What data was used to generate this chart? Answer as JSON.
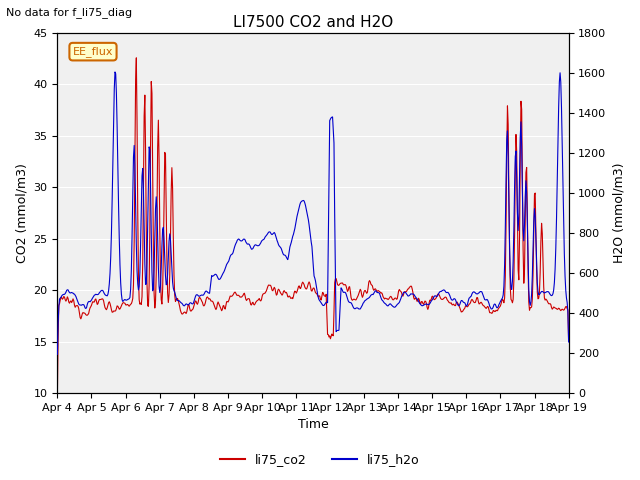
{
  "title": "LI7500 CO2 and H2O",
  "subtitle": "No data for f_li75_diag",
  "xlabel": "Time",
  "ylabel_left": "CO2 (mmol/m3)",
  "ylabel_right": "H2O (mmol/m3)",
  "ylim_left": [
    10,
    45
  ],
  "ylim_right": [
    0,
    1800
  ],
  "yticks_left": [
    10,
    15,
    20,
    25,
    30,
    35,
    40,
    45
  ],
  "yticks_right": [
    0,
    200,
    400,
    600,
    800,
    1000,
    1200,
    1400,
    1600,
    1800
  ],
  "xtick_labels": [
    "Apr 4",
    "Apr 5",
    "Apr 6",
    "Apr 7",
    "Apr 8",
    "Apr 9",
    "Apr 10",
    "Apr 11",
    "Apr 12",
    "Apr 13",
    "Apr 14",
    "Apr 15",
    "Apr 16",
    "Apr 17",
    "Apr 18",
    "Apr 19"
  ],
  "color_co2": "#cc0000",
  "color_h2o": "#0000cc",
  "legend_label_co2": "li75_co2",
  "legend_label_h2o": "li75_h2o",
  "annotation_text": "EE_flux",
  "background_color": "#ffffff",
  "plot_bg_color": "#f0f0f0",
  "grid_color": "#ffffff"
}
